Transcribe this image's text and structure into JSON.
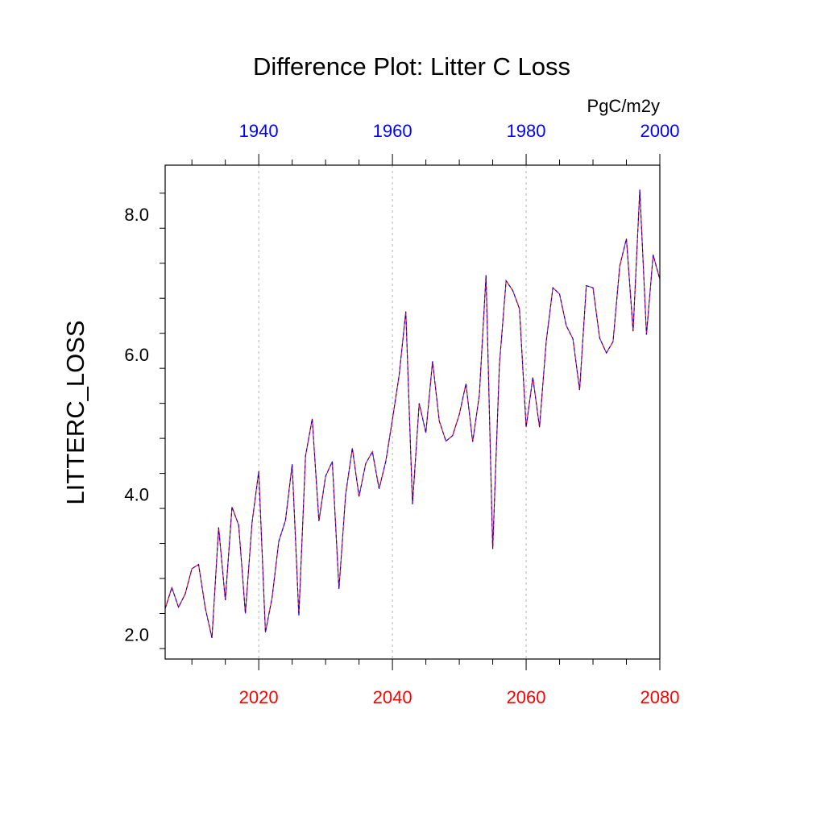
{
  "chart_data": {
    "type": "line",
    "title": "Difference Plot: Litter C Loss",
    "units": "PgC/m2y",
    "ylabel": "LITTERC_LOSS",
    "xlabel": "",
    "ylim": [
      1.65,
      8.7
    ],
    "yticks": [
      2.0,
      4.0,
      6.0,
      8.0
    ],
    "ytick_labels": [
      "2.0",
      "4.0",
      "6.0",
      "8.0"
    ],
    "x_bottom": {
      "range": [
        2006,
        2080
      ],
      "ticks": [
        2020,
        2040,
        2060,
        2080
      ],
      "labels": [
        "2020",
        "2040",
        "2060",
        "2080"
      ],
      "color": "#ff0000"
    },
    "x_top": {
      "range": [
        1926,
        2000
      ],
      "ticks": [
        1940,
        1960,
        1980,
        2000
      ],
      "labels": [
        "1940",
        "1960",
        "1980",
        "2000"
      ],
      "color": "#0000ff"
    },
    "vertical_grid": [
      2020,
      2040,
      2060
    ],
    "series": [
      {
        "name": "difference",
        "color_primary": "#ff0000",
        "color_secondary": "#0000ff",
        "x": [
          2006,
          2007,
          2008,
          2009,
          2010,
          2011,
          2012,
          2013,
          2014,
          2015,
          2016,
          2017,
          2018,
          2019,
          2020,
          2021,
          2022,
          2023,
          2024,
          2025,
          2026,
          2027,
          2028,
          2029,
          2030,
          2031,
          2032,
          2033,
          2034,
          2035,
          2036,
          2037,
          2038,
          2039,
          2040,
          2041,
          2042,
          2043,
          2044,
          2045,
          2046,
          2047,
          2048,
          2049,
          2050,
          2051,
          2052,
          2053,
          2054,
          2055,
          2056,
          2057,
          2058,
          2059,
          2060,
          2061,
          2062,
          2063,
          2064,
          2065,
          2066,
          2067,
          2068,
          2069,
          2070,
          2071,
          2072,
          2073,
          2074,
          2075,
          2076,
          2077,
          2078,
          2079,
          2080
        ],
        "values": [
          2.37,
          2.67,
          2.39,
          2.58,
          2.94,
          3.0,
          2.38,
          1.95,
          3.53,
          2.49,
          3.82,
          3.56,
          2.3,
          3.6,
          4.33,
          2.03,
          2.53,
          3.33,
          3.63,
          4.43,
          2.27,
          4.55,
          5.08,
          3.62,
          4.26,
          4.47,
          2.65,
          4.0,
          4.66,
          3.97,
          4.44,
          4.61,
          4.08,
          4.47,
          5.07,
          5.7,
          6.61,
          3.86,
          5.3,
          4.88,
          5.9,
          5.05,
          4.76,
          4.84,
          5.14,
          5.58,
          4.75,
          5.42,
          7.13,
          3.22,
          5.85,
          7.05,
          6.91,
          6.65,
          4.96,
          5.67,
          4.96,
          6.18,
          6.95,
          6.86,
          6.41,
          6.22,
          5.49,
          6.98,
          6.95,
          6.23,
          6.02,
          6.18,
          7.26,
          7.65,
          6.33,
          8.35,
          6.28,
          7.42,
          7.07
        ]
      }
    ]
  }
}
